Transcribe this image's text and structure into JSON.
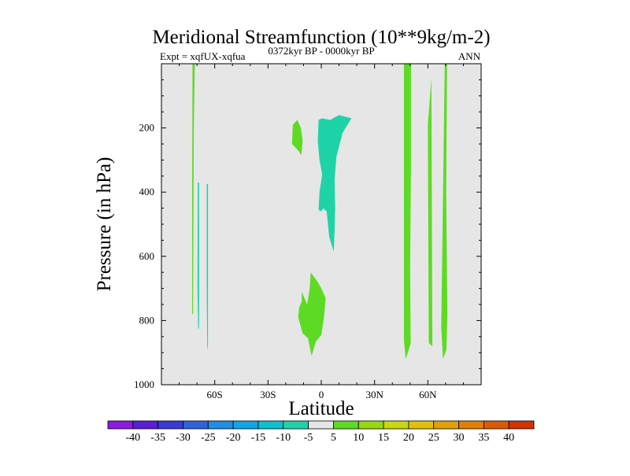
{
  "chart_data": {
    "type": "contour",
    "title": "Meridional Streamfunction (10**9kg/m-2)",
    "left_label": "Expt = xqfUX-xqfua",
    "center_label": "0372kyr BP - 0000kyr BP",
    "right_label": "ANN",
    "xlabel": "Latitude",
    "ylabel": "Pressure (in hPa)",
    "xlim": [
      -90,
      90
    ],
    "ylim": [
      1000,
      0
    ],
    "y_inverted": true,
    "xticks": [
      {
        "value": -60,
        "label": "60S"
      },
      {
        "value": -30,
        "label": "30S"
      },
      {
        "value": 0,
        "label": "0"
      },
      {
        "value": 30,
        "label": "30N"
      },
      {
        "value": 60,
        "label": "60N"
      }
    ],
    "yticks": [
      {
        "value": 200,
        "label": "200"
      },
      {
        "value": 400,
        "label": "400"
      },
      {
        "value": 600,
        "label": "600"
      },
      {
        "value": 800,
        "label": "800"
      },
      {
        "value": 1000,
        "label": "1000"
      }
    ],
    "background_color": "#e6e6e6",
    "colorbar": {
      "labels": [
        "-40",
        "-35",
        "-30",
        "-25",
        "-20",
        "-15",
        "-10",
        "-5",
        "5",
        "10",
        "15",
        "20",
        "25",
        "30",
        "35",
        "40"
      ],
      "colors": [
        "#8a1be0",
        "#5a1ed6",
        "#3a3ad8",
        "#2f63dc",
        "#1f8ee4",
        "#10a5e6",
        "#0fbfd0",
        "#1fd3a8",
        "#e6e6e6",
        "#5ddb24",
        "#95d810",
        "#c9d80c",
        "#e3c008",
        "#e3a006",
        "#e08006",
        "#dc5a06",
        "#d63005"
      ]
    },
    "regions": [
      {
        "name": "sh-narrow-green",
        "level": "5 to 10",
        "color": "#5ddb24",
        "points": [
          [
            -72.5,
            0
          ],
          [
            -71.2,
            0
          ],
          [
            -71.8,
            200
          ],
          [
            -72.0,
            500
          ],
          [
            -72.2,
            780
          ],
          [
            -72.7,
            780
          ],
          [
            -72.7,
            400
          ]
        ]
      },
      {
        "name": "sh-cyan-strip-a",
        "level": "-10 to -5",
        "color": "#1fd3a8",
        "points": [
          [
            -69.5,
            370
          ],
          [
            -68.8,
            370
          ],
          [
            -68.8,
            820
          ],
          [
            -69.3,
            830
          ],
          [
            -69.7,
            700
          ]
        ]
      },
      {
        "name": "sh-cyan-strip-b",
        "level": "-10 to -5",
        "color": "#1fd3a8",
        "points": [
          [
            -64.5,
            375
          ],
          [
            -63.8,
            375
          ],
          [
            -63.8,
            880
          ],
          [
            -64.2,
            890
          ],
          [
            -64.5,
            700
          ]
        ]
      },
      {
        "name": "upper-green-blob",
        "level": "5 to 10",
        "color": "#5ddb24",
        "points": [
          [
            -16.0,
            190
          ],
          [
            -13.5,
            175
          ],
          [
            -11.5,
            200
          ],
          [
            -10.5,
            240
          ],
          [
            -11.2,
            285
          ],
          [
            -13.0,
            270
          ],
          [
            -16.5,
            250
          ]
        ]
      },
      {
        "name": "equatorial-cyan-cell",
        "level": "-10 to -5",
        "color": "#1fd3a8",
        "points": [
          [
            -1.5,
            175
          ],
          [
            0.5,
            170
          ],
          [
            5.0,
            175
          ],
          [
            10.0,
            160
          ],
          [
            17.0,
            170
          ],
          [
            12.0,
            215
          ],
          [
            8.5,
            290
          ],
          [
            7.5,
            360
          ],
          [
            7.8,
            450
          ],
          [
            7.5,
            520
          ],
          [
            7.0,
            585
          ],
          [
            4.5,
            540
          ],
          [
            3.0,
            460
          ],
          [
            1.0,
            450
          ],
          [
            0.0,
            460
          ],
          [
            -1.5,
            455
          ],
          [
            -1.0,
            400
          ],
          [
            0.5,
            345
          ],
          [
            -1.0,
            300
          ],
          [
            -2.0,
            240
          ]
        ]
      },
      {
        "name": "lower-green-cell",
        "level": "5 to 10",
        "color": "#5ddb24",
        "points": [
          [
            -6.0,
            650
          ],
          [
            -2.0,
            680
          ],
          [
            0.0,
            700
          ],
          [
            2.5,
            730
          ],
          [
            1.5,
            790
          ],
          [
            0.0,
            845
          ],
          [
            -3.0,
            865
          ],
          [
            -5.5,
            910
          ],
          [
            -7.5,
            855
          ],
          [
            -10.5,
            840
          ],
          [
            -13.0,
            790
          ],
          [
            -12.5,
            760
          ],
          [
            -11.0,
            740
          ],
          [
            -11.0,
            710
          ],
          [
            -8.0,
            750
          ],
          [
            -6.5,
            700
          ]
        ]
      },
      {
        "name": "nh-green-column-a",
        "level": "5 to 10",
        "color": "#5ddb24",
        "points": [
          [
            46.5,
            0
          ],
          [
            50.5,
            0
          ],
          [
            50.5,
            310
          ],
          [
            50.0,
            640
          ],
          [
            50.3,
            870
          ],
          [
            49.0,
            895
          ],
          [
            47.5,
            920
          ],
          [
            46.5,
            860
          ]
        ]
      },
      {
        "name": "nh-green-column-b",
        "level": "5 to 10",
        "color": "#5ddb24",
        "points": [
          [
            60.0,
            190
          ],
          [
            62.0,
            45
          ],
          [
            62.5,
            880
          ],
          [
            60.5,
            870
          ]
        ]
      },
      {
        "name": "nh-green-column-c",
        "level": "5 to 10",
        "color": "#5ddb24",
        "points": [
          [
            67.5,
            820
          ],
          [
            69.5,
            0
          ],
          [
            70.8,
            0
          ],
          [
            70.3,
            400
          ],
          [
            71.0,
            780
          ],
          [
            70.5,
            890
          ],
          [
            68.5,
            920
          ]
        ]
      }
    ]
  }
}
